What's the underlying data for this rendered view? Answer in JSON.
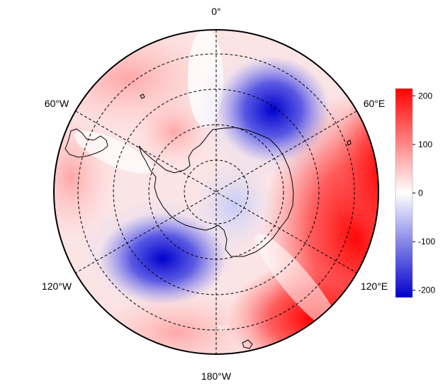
{
  "map": {
    "projection": "south-polar-stereographic",
    "colormap": "blue-white-red",
    "colors": {
      "negative": "#0000cc",
      "zero": "#ffffff",
      "positive": "#ff0000"
    },
    "longitude_labels": {
      "top": "0°",
      "upper_left": "60°W",
      "upper_right": "60°E",
      "lower_left": "120°W",
      "lower_right": "120°E",
      "bottom": "180°W"
    },
    "latitude_label": "-50°",
    "pattern": {
      "positive_regions": [
        "outer ring 0°–60°W",
        "near Antarctic Peninsula",
        "120°E–180° sector"
      ],
      "negative_regions": [
        "30°E–60°E near coast",
        "150°W–120°W sector"
      ]
    }
  },
  "colorbar": {
    "min": -215,
    "max": 215,
    "ticks": [
      {
        "value": 200,
        "label": "200"
      },
      {
        "value": 100,
        "label": "100"
      },
      {
        "value": 0,
        "label": "0"
      },
      {
        "value": -100,
        "label": "-100"
      },
      {
        "value": -200,
        "label": "-200"
      }
    ]
  }
}
